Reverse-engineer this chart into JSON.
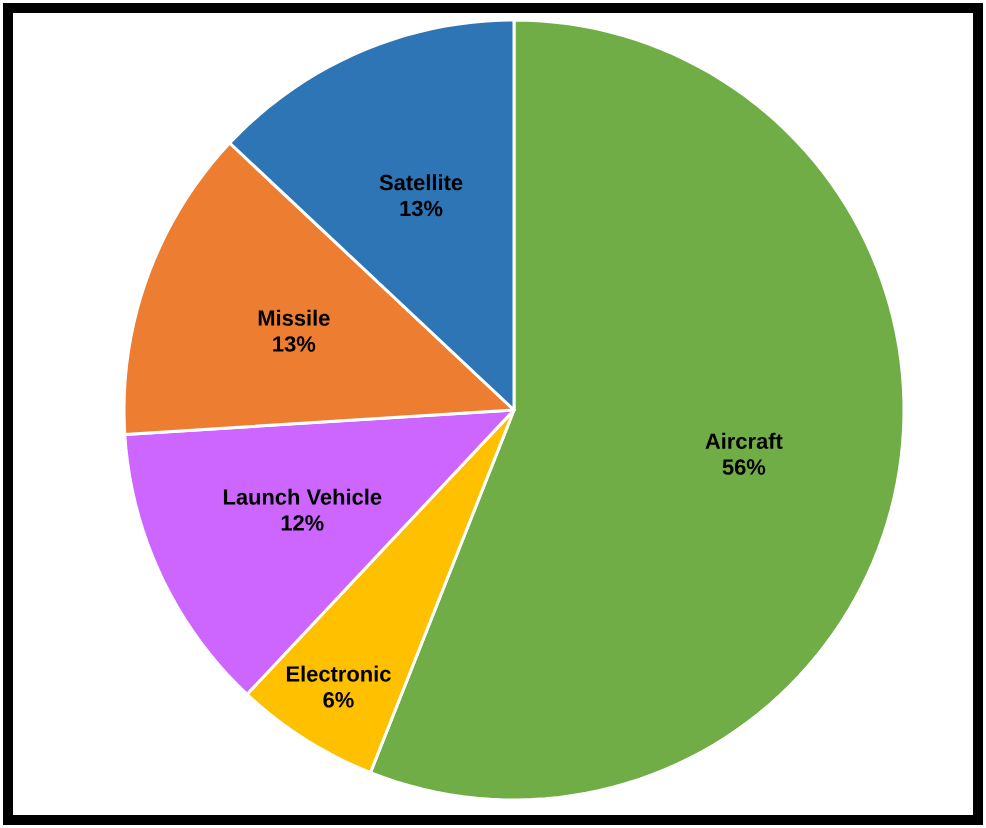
{
  "chart_data": {
    "type": "pie",
    "categories": [
      "Aircraft",
      "Electronic",
      "Launch Vehicle",
      "Missile",
      "Satellite"
    ],
    "values": [
      56,
      6,
      12,
      13,
      13
    ],
    "colors": [
      "#70ad47",
      "#ffc000",
      "#cc66ff",
      "#ed7d31",
      "#2e75b6"
    ],
    "value_labels": [
      "56%",
      "6%",
      "12%",
      "13%",
      "13%"
    ]
  }
}
